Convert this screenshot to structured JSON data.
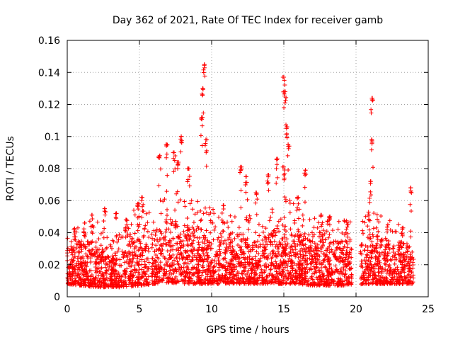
{
  "chart_data": {
    "type": "scatter",
    "title": "Day 362 of 2021, Rate Of TEC Index for receiver gamb",
    "xlabel": "GPS time / hours",
    "ylabel": "ROTI / TECUs",
    "xlim": [
      0,
      25
    ],
    "ylim": [
      0,
      0.16
    ],
    "xticks": [
      0,
      5,
      10,
      15,
      20,
      25
    ],
    "yticks": [
      0,
      0.02,
      0.04,
      0.06,
      0.08,
      0.1,
      0.12,
      0.14,
      0.16
    ],
    "xtick_labels": [
      "0",
      "5",
      "10",
      "15",
      "20",
      "25"
    ],
    "ytick_labels": [
      "0",
      "0.02",
      "0.04",
      "0.06",
      "0.08",
      "0.1",
      "0.12",
      "0.14",
      "0.16"
    ],
    "grid": true,
    "marker": "+",
    "color": "#ff0000",
    "data_gaps_hours": [
      [
        5.7,
        5.85
      ],
      [
        19.7,
        20.3
      ]
    ],
    "series": [
      {
        "name": "ROTI",
        "envelope": [
          {
            "x": 0.0,
            "low": 0.008,
            "high": 0.03
          },
          {
            "x": 1.0,
            "low": 0.007,
            "high": 0.035
          },
          {
            "x": 2.0,
            "low": 0.006,
            "high": 0.035
          },
          {
            "x": 3.0,
            "low": 0.006,
            "high": 0.025
          },
          {
            "x": 4.0,
            "low": 0.006,
            "high": 0.03
          },
          {
            "x": 5.0,
            "low": 0.007,
            "high": 0.045
          },
          {
            "x": 6.0,
            "low": 0.008,
            "high": 0.04
          },
          {
            "x": 7.0,
            "low": 0.009,
            "high": 0.05
          },
          {
            "x": 8.0,
            "low": 0.008,
            "high": 0.045
          },
          {
            "x": 9.0,
            "low": 0.008,
            "high": 0.045
          },
          {
            "x": 10.0,
            "low": 0.008,
            "high": 0.04
          },
          {
            "x": 11.0,
            "low": 0.008,
            "high": 0.035
          },
          {
            "x": 12.0,
            "low": 0.008,
            "high": 0.04
          },
          {
            "x": 13.0,
            "low": 0.008,
            "high": 0.035
          },
          {
            "x": 14.0,
            "low": 0.008,
            "high": 0.04
          },
          {
            "x": 15.0,
            "low": 0.008,
            "high": 0.045
          },
          {
            "x": 16.0,
            "low": 0.008,
            "high": 0.04
          },
          {
            "x": 17.0,
            "low": 0.007,
            "high": 0.035
          },
          {
            "x": 18.0,
            "low": 0.007,
            "high": 0.035
          },
          {
            "x": 19.0,
            "low": 0.007,
            "high": 0.035
          },
          {
            "x": 20.5,
            "low": 0.008,
            "high": 0.035
          },
          {
            "x": 21.0,
            "low": 0.008,
            "high": 0.04
          },
          {
            "x": 22.0,
            "low": 0.008,
            "high": 0.035
          },
          {
            "x": 23.0,
            "low": 0.008,
            "high": 0.035
          },
          {
            "x": 24.0,
            "low": 0.008,
            "high": 0.03
          }
        ],
        "peaks": [
          {
            "x": 0.5,
            "y": 0.042
          },
          {
            "x": 1.2,
            "y": 0.046
          },
          {
            "x": 1.7,
            "y": 0.051
          },
          {
            "x": 2.6,
            "y": 0.055
          },
          {
            "x": 3.4,
            "y": 0.052
          },
          {
            "x": 4.1,
            "y": 0.048
          },
          {
            "x": 4.9,
            "y": 0.058
          },
          {
            "x": 5.2,
            "y": 0.062
          },
          {
            "x": 6.4,
            "y": 0.088
          },
          {
            "x": 6.9,
            "y": 0.095
          },
          {
            "x": 7.4,
            "y": 0.09
          },
          {
            "x": 7.7,
            "y": 0.084
          },
          {
            "x": 7.9,
            "y": 0.1
          },
          {
            "x": 8.4,
            "y": 0.08
          },
          {
            "x": 9.5,
            "y": 0.145
          },
          {
            "x": 9.4,
            "y": 0.13
          },
          {
            "x": 9.3,
            "y": 0.112
          },
          {
            "x": 9.6,
            "y": 0.098
          },
          {
            "x": 10.8,
            "y": 0.057
          },
          {
            "x": 12.0,
            "y": 0.081
          },
          {
            "x": 12.4,
            "y": 0.075
          },
          {
            "x": 13.1,
            "y": 0.065
          },
          {
            "x": 13.9,
            "y": 0.076
          },
          {
            "x": 14.5,
            "y": 0.086
          },
          {
            "x": 15.0,
            "y": 0.137
          },
          {
            "x": 15.1,
            "y": 0.128
          },
          {
            "x": 15.2,
            "y": 0.106
          },
          {
            "x": 15.3,
            "y": 0.095
          },
          {
            "x": 15.0,
            "y": 0.081
          },
          {
            "x": 16.5,
            "y": 0.079
          },
          {
            "x": 16.0,
            "y": 0.062
          },
          {
            "x": 17.6,
            "y": 0.051
          },
          {
            "x": 18.2,
            "y": 0.05
          },
          {
            "x": 19.4,
            "y": 0.045
          },
          {
            "x": 20.9,
            "y": 0.051
          },
          {
            "x": 21.1,
            "y": 0.124
          },
          {
            "x": 21.1,
            "y": 0.098
          },
          {
            "x": 21.0,
            "y": 0.072
          },
          {
            "x": 22.2,
            "y": 0.045
          },
          {
            "x": 23.2,
            "y": 0.043
          },
          {
            "x": 23.8,
            "y": 0.068
          }
        ]
      }
    ]
  }
}
